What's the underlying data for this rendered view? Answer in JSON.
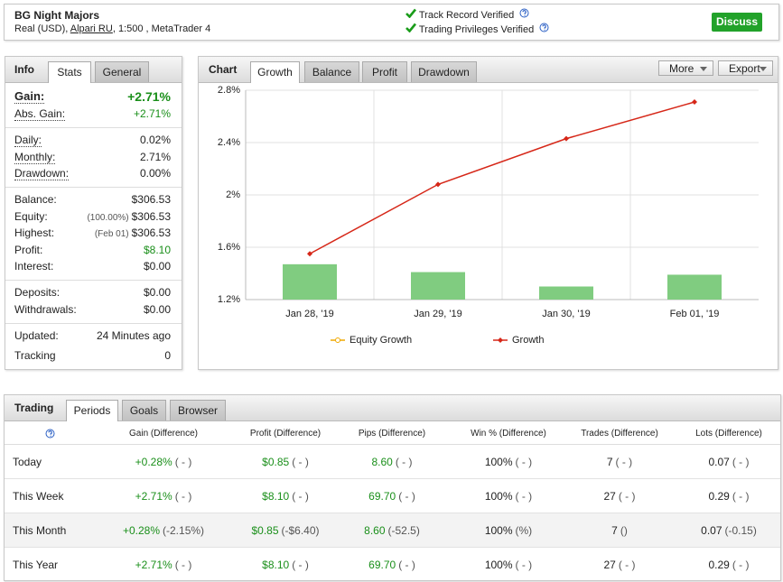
{
  "header": {
    "title": "BG Night Majors",
    "account": "Real (USD),",
    "broker": "Alpari RU",
    "details": ", 1:500 , MetaTrader 4",
    "verified": [
      "Track Record Verified",
      "Trading Privileges Verified"
    ],
    "button": "Discuss"
  },
  "info": {
    "title": "Info",
    "tabs": [
      "Stats",
      "General"
    ],
    "groups": [
      [
        {
          "label": "Gain:",
          "value": "+2.71%",
          "color": "#1a8f1a"
        },
        {
          "label": "Abs. Gain:",
          "value": "+2.71%",
          "color": "#1a8f1a"
        }
      ],
      [
        {
          "label": "Daily:",
          "value": "0.02%"
        },
        {
          "label": "Monthly:",
          "value": "2.71%"
        },
        {
          "label": "Drawdown:",
          "value": "0.00%"
        }
      ],
      [
        {
          "label": "Balance:",
          "value": "$306.53"
        },
        {
          "label": "Equity:",
          "note": "(100.00%)",
          "value": "$306.53"
        },
        {
          "label": "Highest:",
          "note": "(Feb 01)",
          "value": "$306.53"
        },
        {
          "label": "Profit:",
          "value": "$8.10",
          "color": "#1a8f1a"
        },
        {
          "label": "Interest:",
          "value": "$0.00"
        }
      ],
      [
        {
          "label": "Deposits:",
          "value": "$0.00"
        },
        {
          "label": "Withdrawals:",
          "value": "$0.00"
        }
      ],
      [
        {
          "label": "Updated:",
          "value": "24 Minutes ago"
        },
        {
          "label": "Tracking",
          "value": "0"
        }
      ]
    ]
  },
  "chart_panel": {
    "title": "Chart",
    "tabs": [
      "Growth",
      "Balance",
      "Profit",
      "Drawdown"
    ],
    "buttons": [
      "More",
      "Export"
    ]
  },
  "chart_data": {
    "type": "line",
    "categories": [
      "Jan 28, '19",
      "Jan 29, '19",
      "Jan 30, '19",
      "Feb 01, '19"
    ],
    "series": [
      {
        "type": "bar",
        "color": "#80cc80",
        "values": [
          1.47,
          1.41,
          1.3,
          1.39
        ]
      },
      {
        "name": "Equity Growth",
        "color": "#f0a800",
        "values": [
          null,
          null,
          null,
          null
        ]
      },
      {
        "name": "Growth",
        "color": "#d62718",
        "values": [
          1.55,
          2.08,
          2.43,
          2.71
        ]
      }
    ],
    "ylim": [
      1.2,
      2.8
    ],
    "yticks": [
      {
        "value": 1.2,
        "label": "1.2%"
      },
      {
        "value": 1.6,
        "label": "1.6%"
      },
      {
        "value": 2,
        "label": "2%"
      },
      {
        "value": 2.4,
        "label": "2.4%"
      },
      {
        "value": 2.8,
        "label": "2.8%"
      }
    ],
    "grid": true,
    "legend": "bottom"
  },
  "trading": {
    "title": "Trading",
    "tabs": [
      "Periods",
      "Goals",
      "Browser"
    ],
    "columns": [
      "Gain (Difference)",
      "Profit (Difference)",
      "Pips (Difference)",
      "Win % (Difference)",
      "Trades (Difference)",
      "Lots (Difference)"
    ],
    "rows": [
      {
        "label": "Today",
        "cells": [
          [
            "+0.28%",
            "( - )"
          ],
          [
            "$0.85",
            "( - )"
          ],
          [
            "8.60",
            "( - )"
          ],
          [
            "100%",
            "( - )"
          ],
          [
            "7",
            "( - )"
          ],
          [
            "0.07",
            "( - )"
          ]
        ]
      },
      {
        "label": "This Week",
        "cells": [
          [
            "+2.71%",
            "( - )"
          ],
          [
            "$8.10",
            "( - )"
          ],
          [
            "69.70",
            "( - )"
          ],
          [
            "100%",
            "( - )"
          ],
          [
            "27",
            "( - )"
          ],
          [
            "0.29",
            "( - )"
          ]
        ]
      },
      {
        "label": "This Month",
        "cells": [
          [
            "+0.28%",
            "(-2.15%)"
          ],
          [
            "$0.85",
            "(-$6.40)"
          ],
          [
            "8.60",
            "(-52.5)"
          ],
          [
            "100%",
            "(%)"
          ],
          [
            "7",
            "()"
          ],
          [
            "0.07",
            "(-0.15)"
          ]
        ]
      },
      {
        "label": "This Year",
        "cells": [
          [
            "+2.71%",
            "( - )"
          ],
          [
            "$8.10",
            "( - )"
          ],
          [
            "69.70",
            "( - )"
          ],
          [
            "100%",
            "( - )"
          ],
          [
            "27",
            "( - )"
          ],
          [
            "0.29",
            "( - )"
          ]
        ]
      }
    ]
  }
}
